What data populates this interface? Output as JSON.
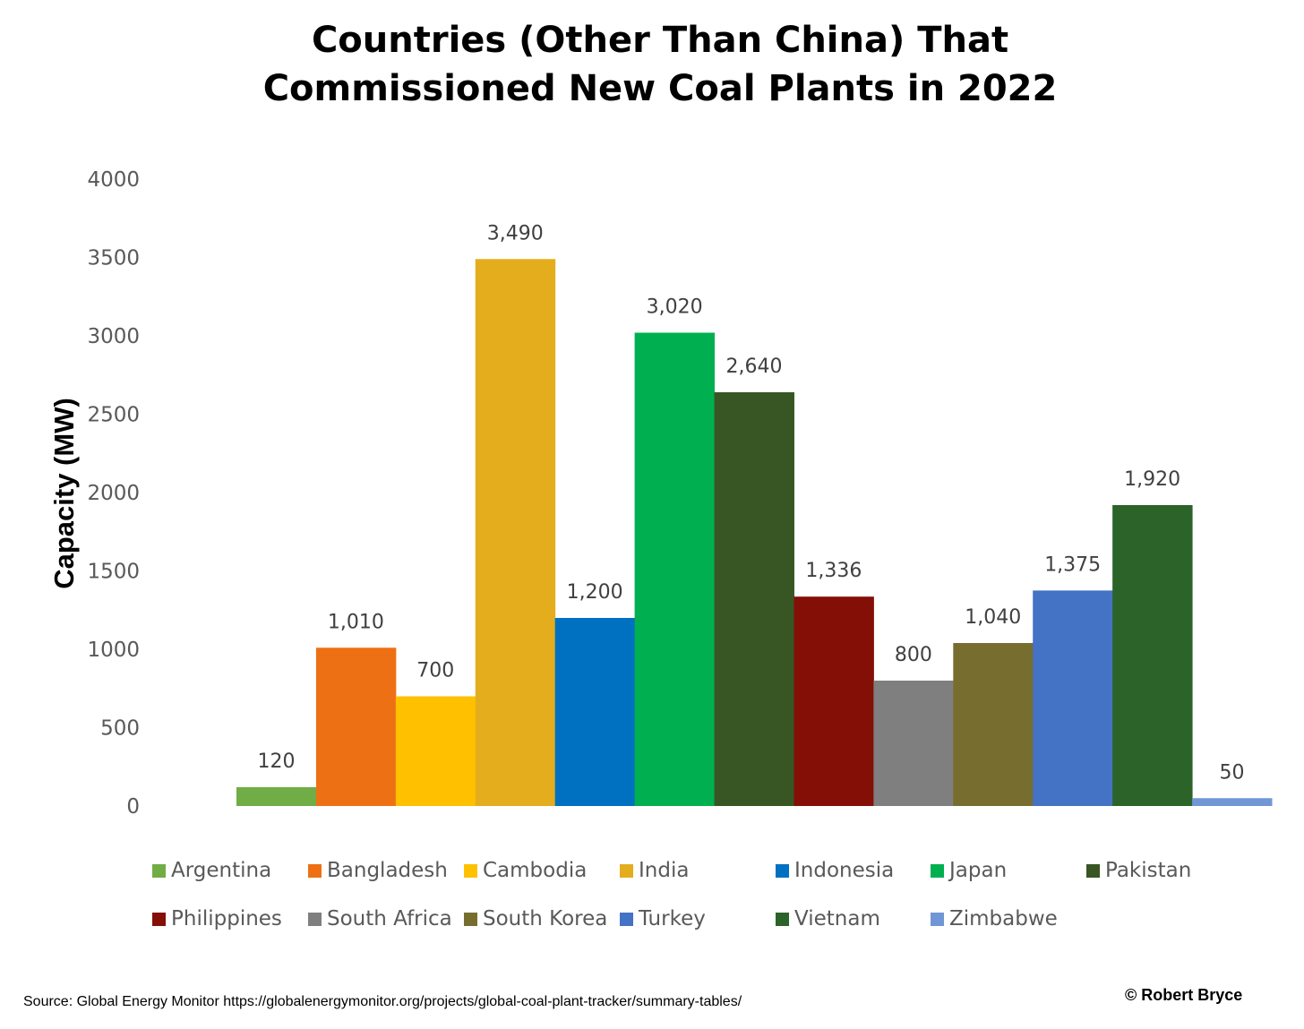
{
  "chart_data": {
    "type": "bar",
    "title_line1": "Countries (Other Than China) That",
    "title_line2": "Commissioned New Coal Plants in 2022",
    "ylabel": "Capacity (MW)",
    "ylim": [
      0,
      4000
    ],
    "yticks": [
      "0",
      "500",
      "1000",
      "1500",
      "2000",
      "2500",
      "3000",
      "3500",
      "4000"
    ],
    "grid": false,
    "legend_position": "bottom",
    "series": [
      {
        "name": "Argentina",
        "value": 120,
        "label": "120",
        "color": "#70AD47"
      },
      {
        "name": "Bangladesh",
        "value": 1010,
        "label": "1,010",
        "color": "#ED7014"
      },
      {
        "name": "Cambodia",
        "value": 700,
        "label": "700",
        "color": "#FFC000"
      },
      {
        "name": "India",
        "value": 3490,
        "label": "3,490",
        "color": "#E3AD1E"
      },
      {
        "name": "Indonesia",
        "value": 1200,
        "label": "1,200",
        "color": "#0070C0"
      },
      {
        "name": "Japan",
        "value": 3020,
        "label": "3,020",
        "color": "#00B050"
      },
      {
        "name": "Pakistan",
        "value": 2640,
        "label": "2,640",
        "color": "#375623"
      },
      {
        "name": "Philippines",
        "value": 1336,
        "label": "1,336",
        "color": "#840F07"
      },
      {
        "name": "South Africa",
        "value": 800,
        "label": "800",
        "color": "#7F7F7F"
      },
      {
        "name": "South Korea",
        "value": 1040,
        "label": "1,040",
        "color": "#776D2F"
      },
      {
        "name": "Turkey",
        "value": 1375,
        "label": "1,375",
        "color": "#4472C4"
      },
      {
        "name": "Vietnam",
        "value": 1920,
        "label": "1,920",
        "color": "#2C6328"
      },
      {
        "name": "Zimbabwe",
        "value": 50,
        "label": "50",
        "color": "#7096D6"
      }
    ]
  },
  "footer": {
    "source": "Source: Global Energy  Monitor https://globalenergymonitor.org/projects/global-coal-plant-tracker/summary-tables/",
    "credit": "© Robert Bryce"
  }
}
